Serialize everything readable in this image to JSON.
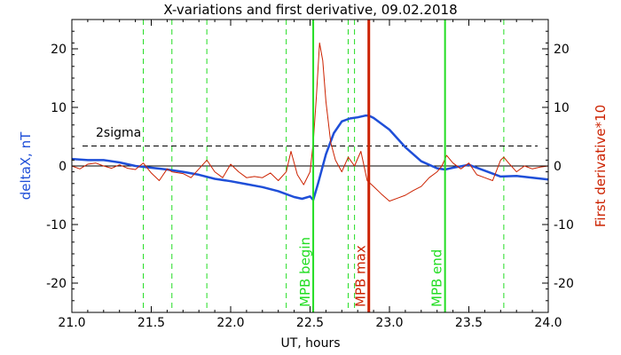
{
  "chart_data": {
    "type": "line",
    "title": "X-variations and first derivative, 09.02.2018",
    "xlabel": "UT, hours",
    "ylabel": "deltaX, nT",
    "ylabel_right": "First derivative*10",
    "xlim": [
      21.0,
      24.0
    ],
    "ylim": [
      -25,
      25
    ],
    "x_ticks": [
      21.0,
      21.5,
      22.0,
      22.5,
      23.0,
      23.5,
      24.0
    ],
    "x_tick_labels": [
      "21.0",
      "21.5",
      "22.0",
      "22.5",
      "23.0",
      "23.5",
      "24.0"
    ],
    "y_ticks": [
      -20,
      -10,
      0,
      10,
      20
    ],
    "y_tick_labels": [
      "-20",
      "-10",
      "0",
      "10",
      "20"
    ],
    "grid": false,
    "colors": {
      "deltaX": "#1f4fd8",
      "derivative": "#cc2200",
      "event_lines": "#22dd22",
      "mpb_max_line": "#cc2200",
      "sigma_line": "#000000"
    },
    "sigma": {
      "label": "2sigma",
      "value": 3.4
    },
    "zero_line": 0,
    "dashed_verticals": [
      21.45,
      21.63,
      21.85,
      22.35,
      22.74,
      22.78,
      23.72
    ],
    "markers": [
      {
        "label": "MPB begin",
        "x": 22.52,
        "color": "#22dd22"
      },
      {
        "label": "MPB max",
        "x": 22.87,
        "color": "#cc2200"
      },
      {
        "label": "MPB end",
        "x": 23.35,
        "color": "#22dd22"
      }
    ],
    "series": [
      {
        "key": "deltaX",
        "x": [
          21.0,
          21.1,
          21.2,
          21.3,
          21.4,
          21.5,
          21.6,
          21.7,
          21.8,
          21.9,
          22.0,
          22.1,
          22.2,
          22.3,
          22.4,
          22.45,
          22.5,
          22.52,
          22.55,
          22.6,
          22.65,
          22.7,
          22.75,
          22.8,
          22.85,
          22.87,
          22.9,
          23.0,
          23.1,
          23.2,
          23.3,
          23.35,
          23.4,
          23.5,
          23.6,
          23.7,
          23.8,
          23.9,
          24.0
        ],
        "values": [
          1.2,
          1.0,
          1.0,
          0.6,
          0.0,
          -0.3,
          -0.6,
          -1.0,
          -1.5,
          -2.2,
          -2.6,
          -3.1,
          -3.6,
          -4.3,
          -5.3,
          -5.6,
          -5.2,
          -5.8,
          -3.0,
          2.0,
          5.6,
          7.6,
          8.1,
          8.3,
          8.6,
          8.6,
          8.2,
          6.2,
          3.2,
          0.8,
          -0.4,
          -0.6,
          -0.3,
          0.2,
          -0.8,
          -1.8,
          -1.7,
          -2.0,
          -2.3
        ]
      },
      {
        "key": "derivative",
        "x": [
          21.0,
          21.05,
          21.1,
          21.15,
          21.2,
          21.25,
          21.3,
          21.35,
          21.4,
          21.45,
          21.5,
          21.55,
          21.6,
          21.63,
          21.7,
          21.75,
          21.8,
          21.85,
          21.9,
          21.95,
          22.0,
          22.05,
          22.1,
          22.15,
          22.2,
          22.25,
          22.3,
          22.35,
          22.38,
          22.42,
          22.46,
          22.5,
          22.52,
          22.54,
          22.56,
          22.58,
          22.6,
          22.63,
          22.66,
          22.7,
          22.74,
          22.78,
          22.82,
          22.86,
          22.9,
          22.95,
          23.0,
          23.05,
          23.1,
          23.15,
          23.2,
          23.25,
          23.3,
          23.33,
          23.36,
          23.4,
          23.45,
          23.5,
          23.55,
          23.6,
          23.65,
          23.7,
          23.72,
          23.75,
          23.8,
          23.85,
          23.9,
          23.95,
          24.0
        ],
        "values": [
          0.0,
          -0.5,
          0.3,
          0.5,
          0.0,
          -0.4,
          0.2,
          -0.4,
          -0.6,
          0.5,
          -1.2,
          -2.5,
          -0.5,
          -1.0,
          -1.3,
          -2.0,
          -0.5,
          1.0,
          -1.0,
          -2.0,
          0.3,
          -1.0,
          -2.0,
          -1.8,
          -2.0,
          -1.2,
          -2.5,
          -1.0,
          2.5,
          -1.5,
          -3.2,
          -1.0,
          4.0,
          12.0,
          21.0,
          18.0,
          11.0,
          4.0,
          1.0,
          -1.0,
          1.5,
          0.0,
          2.5,
          -2.5,
          -3.5,
          -4.8,
          -6.0,
          -5.5,
          -5.0,
          -4.2,
          -3.5,
          -2.0,
          -1.0,
          0.0,
          1.8,
          0.5,
          -0.5,
          0.5,
          -1.5,
          -2.0,
          -2.5,
          1.0,
          1.5,
          0.5,
          -1.0,
          0.0,
          -0.5,
          -0.2,
          0.0
        ]
      }
    ]
  }
}
